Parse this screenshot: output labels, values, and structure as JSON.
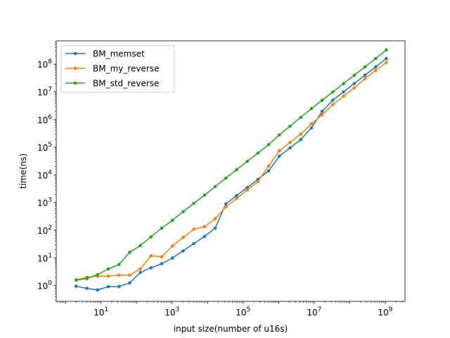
{
  "chart_data": {
    "type": "line",
    "title": "",
    "xlabel": "input size(number of u16s)",
    "ylabel": "time(ns)",
    "xscale": "log",
    "yscale": "log",
    "xlim": [
      0.55,
      3600000000.0
    ],
    "ylim": [
      0.27,
      700000000.0
    ],
    "x_ticks": [
      {
        "value": 10,
        "base": "10",
        "exp": "1"
      },
      {
        "value": 1000,
        "base": "10",
        "exp": "3"
      },
      {
        "value": 100000,
        "base": "10",
        "exp": "5"
      },
      {
        "value": 10000000,
        "base": "10",
        "exp": "7"
      },
      {
        "value": 1000000000,
        "base": "10",
        "exp": "9"
      }
    ],
    "y_ticks": [
      {
        "value": 1,
        "base": "10",
        "exp": "0"
      },
      {
        "value": 10,
        "base": "10",
        "exp": "1"
      },
      {
        "value": 100,
        "base": "10",
        "exp": "2"
      },
      {
        "value": 1000,
        "base": "10",
        "exp": "3"
      },
      {
        "value": 10000,
        "base": "10",
        "exp": "4"
      },
      {
        "value": 100000,
        "base": "10",
        "exp": "5"
      },
      {
        "value": 1000000,
        "base": "10",
        "exp": "6"
      },
      {
        "value": 10000000,
        "base": "10",
        "exp": "7"
      },
      {
        "value": 100000000,
        "base": "10",
        "exp": "8"
      }
    ],
    "grid": false,
    "legend_position": "upper-left",
    "x": [
      2,
      4,
      8,
      16,
      32,
      64,
      128,
      256,
      512,
      1024,
      2048,
      4096,
      8192,
      16384,
      32768,
      65536,
      131072,
      262144,
      524288,
      1048576,
      2097152,
      4194304,
      8388608,
      16777216,
      33554432,
      67108864,
      134217728,
      268435456,
      536870912,
      1073741824
    ],
    "series": [
      {
        "name": "BM_memset",
        "color": "#1f77b4",
        "values": [
          0.95,
          0.8,
          0.7,
          0.92,
          0.93,
          1.25,
          3.0,
          4.4,
          6.2,
          10,
          18,
          33,
          60,
          120,
          900,
          1800,
          3500,
          7000,
          14000,
          48000,
          95000,
          190000,
          500000,
          2000000,
          5000000,
          10000000,
          20000000,
          40000000,
          80000000,
          160000000
        ]
      },
      {
        "name": "BM_my_reverse",
        "color": "#ff7f0e",
        "values": [
          1.6,
          2.0,
          2.2,
          2.2,
          2.4,
          2.4,
          4.0,
          12,
          11,
          27,
          55,
          110,
          135,
          260,
          700,
          1400,
          2900,
          5800,
          21000,
          75000,
          150000,
          300000,
          700000,
          1500000,
          3500000,
          7000000,
          14000000,
          30000000,
          60000000,
          115000000
        ]
      },
      {
        "name": "BM_std_reverse",
        "color": "#2ca02c",
        "values": [
          1.6,
          1.8,
          2.5,
          4.0,
          5.8,
          16,
          28,
          58,
          120,
          230,
          470,
          950,
          1850,
          3800,
          7700,
          15500,
          31000,
          62000,
          125000,
          280000,
          580000,
          1200000,
          2500000,
          5000000,
          10000000,
          20000000,
          40000000,
          80000000,
          160000000,
          330000000
        ]
      }
    ]
  }
}
